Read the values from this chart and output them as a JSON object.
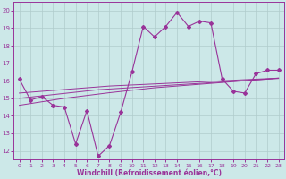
{
  "xlabel": "Windchill (Refroidissement éolien,°C)",
  "background_color": "#cce8e8",
  "line_color": "#993399",
  "xlim": [
    -0.5,
    23.5
  ],
  "ylim": [
    11.5,
    20.5
  ],
  "xticks": [
    0,
    1,
    2,
    3,
    4,
    5,
    6,
    7,
    8,
    9,
    10,
    11,
    12,
    13,
    14,
    15,
    16,
    17,
    18,
    19,
    20,
    21,
    22,
    23
  ],
  "yticks": [
    12,
    13,
    14,
    15,
    16,
    17,
    18,
    19,
    20
  ],
  "main_line": [
    16.1,
    14.9,
    15.1,
    14.6,
    14.5,
    12.4,
    14.3,
    11.7,
    12.3,
    14.2,
    16.5,
    19.1,
    18.5,
    19.1,
    19.9,
    19.1,
    19.4,
    19.3,
    16.1,
    15.4,
    15.3,
    16.4,
    16.6,
    16.6
  ],
  "trend_line1": [
    15.3,
    15.35,
    15.4,
    15.45,
    15.5,
    15.55,
    15.6,
    15.65,
    15.7,
    15.73,
    15.76,
    15.79,
    15.82,
    15.85,
    15.88,
    15.91,
    15.94,
    15.97,
    16.0,
    16.03,
    16.06,
    16.09,
    16.12,
    16.15
  ],
  "trend_line2": [
    15.0,
    15.07,
    15.14,
    15.21,
    15.28,
    15.35,
    15.42,
    15.49,
    15.53,
    15.57,
    15.61,
    15.65,
    15.69,
    15.73,
    15.77,
    15.81,
    15.85,
    15.89,
    15.93,
    15.97,
    16.01,
    16.05,
    16.09,
    16.13
  ],
  "trend_line3": [
    14.6,
    14.7,
    14.8,
    14.9,
    15.0,
    15.08,
    15.16,
    15.24,
    15.32,
    15.39,
    15.46,
    15.53,
    15.6,
    15.65,
    15.7,
    15.75,
    15.8,
    15.85,
    15.9,
    15.95,
    16.0,
    16.05,
    16.1,
    16.15
  ]
}
